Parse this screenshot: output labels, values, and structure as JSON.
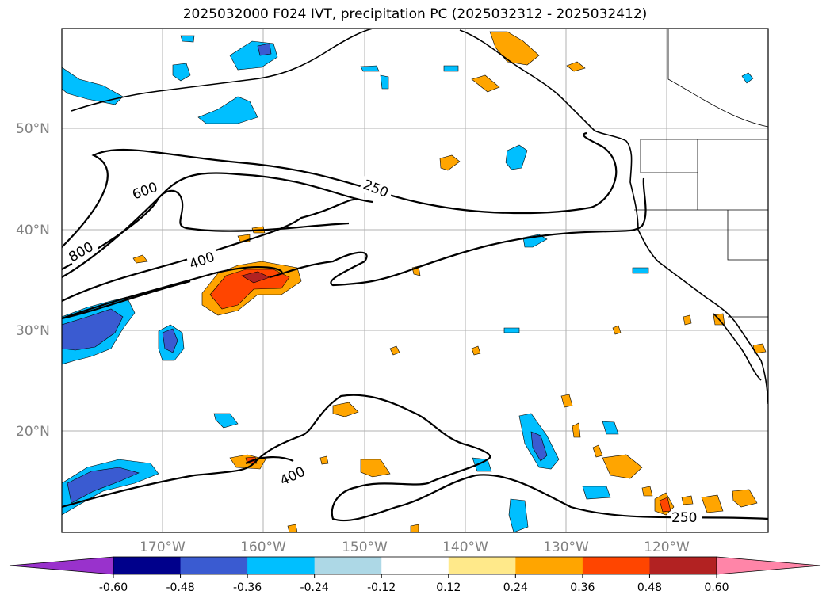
{
  "title": "2025032000 F024 IVT, precipitation PC (2025032312 - 2025032412)",
  "lat_labels": [
    "50°N",
    "40°N",
    "30°N",
    "20°N"
  ],
  "lon_labels": [
    "170°W",
    "160°W",
    "150°W",
    "140°W",
    "130°W",
    "120°W"
  ],
  "colorbar": {
    "ticks": [
      "-0.60",
      "-0.48",
      "-0.36",
      "-0.24",
      "-0.12",
      "0.12",
      "0.24",
      "0.36",
      "0.48",
      "0.60"
    ],
    "colors": [
      "#9932cc",
      "#00008b",
      "#3a5bd1",
      "#00bfff",
      "#add8e6",
      "#ffffff",
      "#ffe98a",
      "#ffa500",
      "#ff4500",
      "#b22222",
      "#ff85a8"
    ]
  },
  "contour_labels": {
    "c250_top": "250",
    "c600": "600",
    "c800": "800",
    "c400_top": "400",
    "c400_bottom": "400",
    "c250_bottom": "250"
  }
}
